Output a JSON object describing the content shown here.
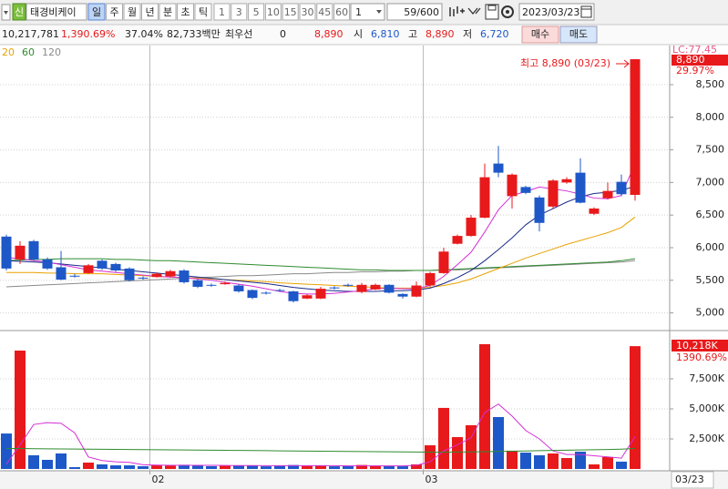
{
  "toolbar": {
    "badge": "신",
    "stock_name": "태경비케이",
    "periods": [
      "일",
      "주",
      "월",
      "년",
      "분",
      "초",
      "틱"
    ],
    "intervals": [
      "1",
      "3",
      "5",
      "10",
      "15",
      "30",
      "45",
      "60"
    ],
    "multiplier": "1",
    "count": "59/600",
    "date": "2023/03/23"
  },
  "info": {
    "volume": "10,217,781",
    "volume_ratio": "1,390.69%",
    "turnover": "37.04%",
    "market_cap": "82,733백만",
    "best_label": "최우선",
    "best_value": "0",
    "current": "8,890",
    "open_label": "시",
    "open": "6,810",
    "high_label": "고",
    "high": "8,890",
    "low_label": "저",
    "low": "6,720",
    "buy": "매수",
    "sell": "매도"
  },
  "chart_data": {
    "type": "candlestick",
    "categories": [
      null,
      null,
      null,
      null,
      null,
      null,
      null,
      null,
      null,
      null,
      null,
      "02",
      null,
      null,
      null,
      null,
      null,
      null,
      null,
      null,
      null,
      null,
      null,
      null,
      null,
      null,
      null,
      null,
      null,
      null,
      null,
      "03",
      null,
      null,
      null,
      null,
      null,
      null,
      null,
      null,
      null,
      null,
      null,
      null,
      null,
      null,
      null
    ],
    "open": [
      6170,
      5820,
      6100,
      5820,
      5700,
      5570,
      5610,
      5800,
      5750,
      5680,
      5540,
      5550,
      5560,
      5650,
      5500,
      5430,
      5440,
      5420,
      5350,
      5310,
      5350,
      5330,
      5220,
      5220,
      5390,
      5430,
      5320,
      5360,
      5430,
      5290,
      5250,
      5420,
      5610,
      6060,
      6180,
      6460,
      7290,
      6790,
      6930,
      6770,
      6630,
      7000,
      7150,
      6520,
      6760,
      7010,
      6810
    ],
    "high": [
      6200,
      6100,
      6120,
      5850,
      5950,
      5600,
      5750,
      5820,
      5770,
      5700,
      5560,
      5620,
      5660,
      5670,
      5520,
      5450,
      5480,
      5440,
      5360,
      5330,
      5370,
      5340,
      5290,
      5400,
      5410,
      5450,
      5460,
      5450,
      5440,
      5300,
      5480,
      5630,
      6000,
      6200,
      6500,
      7290,
      7560,
      7140,
      6950,
      6800,
      7050,
      7080,
      7370,
      6620,
      7000,
      7120,
      8890
    ],
    "low": [
      5650,
      5750,
      5800,
      5660,
      5500,
      5540,
      5600,
      5660,
      5630,
      5480,
      5510,
      5540,
      5550,
      5450,
      5380,
      5400,
      5430,
      5310,
      5210,
      5280,
      5320,
      5160,
      5210,
      5210,
      5360,
      5400,
      5300,
      5350,
      5300,
      5220,
      5240,
      5400,
      5600,
      6050,
      6170,
      6450,
      7080,
      6600,
      6820,
      6250,
      6600,
      6980,
      6680,
      6500,
      6740,
      6790,
      6720
    ],
    "close": [
      5680,
      6030,
      5820,
      5680,
      5510,
      5560,
      5730,
      5680,
      5650,
      5500,
      5530,
      5600,
      5640,
      5470,
      5400,
      5420,
      5460,
      5330,
      5230,
      5300,
      5340,
      5180,
      5270,
      5370,
      5380,
      5420,
      5430,
      5430,
      5310,
      5250,
      5420,
      5610,
      5940,
      6180,
      6460,
      7080,
      7150,
      7120,
      6840,
      6380,
      7030,
      7050,
      6690,
      6600,
      6870,
      6820,
      8890
    ],
    "up_color": "#e8191b",
    "down_color": "#1e58c8",
    "ylim": [
      4743,
      9100
    ],
    "yticks": [
      {
        "value": 5000,
        "label": "5,000"
      },
      {
        "value": 5500,
        "label": "5,500"
      },
      {
        "value": 6000,
        "label": "6,000"
      },
      {
        "value": 6500,
        "label": "6,500"
      },
      {
        "value": 7000,
        "label": "7,000"
      },
      {
        "value": 7500,
        "label": "7,500"
      },
      {
        "value": 8000,
        "label": "8,000"
      },
      {
        "value": 8500,
        "label": "8,500"
      }
    ],
    "grid": true,
    "moving_averages": [
      {
        "color": "#d42fd4",
        "values": [
          5850,
          5830,
          5800,
          5780,
          5740,
          5700,
          5660,
          5640,
          5620,
          5600,
          5580,
          5560,
          5550,
          5540,
          5520,
          5500,
          5470,
          5440,
          5410,
          5370,
          5330,
          5300,
          5290,
          5290,
          5300,
          5320,
          5340,
          5370,
          5380,
          5370,
          5370,
          5420,
          5560,
          5740,
          5930,
          6240,
          6580,
          6800,
          6860,
          6930,
          6900,
          6870,
          6820,
          6760,
          6750,
          6800,
          7290
        ]
      },
      {
        "color": "#1a2a8a",
        "values": [
          5800,
          5790,
          5780,
          5770,
          5750,
          5730,
          5710,
          5690,
          5670,
          5650,
          5630,
          5610,
          5590,
          5570,
          5550,
          5530,
          5510,
          5490,
          5470,
          5450,
          5420,
          5390,
          5370,
          5350,
          5340,
          5330,
          5330,
          5330,
          5340,
          5340,
          5350,
          5380,
          5450,
          5540,
          5650,
          5800,
          5970,
          6150,
          6350,
          6500,
          6600,
          6700,
          6780,
          6830,
          6850,
          6880,
          6940
        ]
      },
      {
        "name": "20",
        "color": "#e8a200",
        "values": [
          5620,
          5620,
          5620,
          5610,
          5610,
          5600,
          5600,
          5600,
          5590,
          5580,
          5570,
          5560,
          5550,
          5540,
          5530,
          5520,
          5510,
          5500,
          5490,
          5480,
          5460,
          5450,
          5440,
          5430,
          5420,
          5410,
          5400,
          5390,
          5380,
          5380,
          5380,
          5390,
          5420,
          5460,
          5520,
          5600,
          5680,
          5760,
          5840,
          5910,
          5980,
          6050,
          6110,
          6170,
          6230,
          6310,
          6470
        ]
      },
      {
        "name": "60",
        "color": "#2e8b2e",
        "values": [
          5800,
          5810,
          5820,
          5820,
          5830,
          5830,
          5830,
          5830,
          5820,
          5820,
          5810,
          5800,
          5800,
          5790,
          5780,
          5770,
          5760,
          5750,
          5740,
          5730,
          5720,
          5710,
          5700,
          5690,
          5680,
          5670,
          5660,
          5660,
          5650,
          5650,
          5650,
          5650,
          5660,
          5670,
          5680,
          5690,
          5700,
          5710,
          5720,
          5730,
          5740,
          5750,
          5760,
          5770,
          5780,
          5800,
          5830
        ]
      },
      {
        "name": "120",
        "color": "#8a8a8a",
        "values": [
          5400,
          5410,
          5420,
          5430,
          5440,
          5450,
          5460,
          5470,
          5480,
          5490,
          5500,
          5510,
          5520,
          5530,
          5540,
          5550,
          5560,
          5570,
          5570,
          5580,
          5590,
          5600,
          5600,
          5610,
          5620,
          5620,
          5630,
          5630,
          5640,
          5640,
          5650,
          5650,
          5660,
          5660,
          5670,
          5680,
          5690,
          5700,
          5710,
          5720,
          5730,
          5740,
          5750,
          5760,
          5770,
          5780,
          5800
        ]
      }
    ],
    "annotation": "최고 8,890 (03/23)",
    "top_label": "LC:77.45",
    "last_price_label": "8,890",
    "last_change_label": "29.97%",
    "last_date_label": "03/23",
    "volume": {
      "values": [
        2950,
        9850,
        1140,
        760,
        1290,
        150,
        530,
        380,
        300,
        300,
        230,
        300,
        300,
        350,
        280,
        230,
        260,
        300,
        280,
        220,
        250,
        330,
        250,
        300,
        220,
        240,
        330,
        280,
        260,
        220,
        380,
        1970,
        5080,
        2650,
        3640,
        10380,
        4320,
        1520,
        1360,
        1140,
        1290,
        910,
        1440,
        380,
        990,
        610,
        10218
      ],
      "ylim": [
        0,
        11364
      ],
      "yticks": [
        {
          "value": 2500,
          "label": "2,500K"
        },
        {
          "value": 5000,
          "label": "5,000K"
        },
        {
          "value": 7500,
          "label": "7,500K"
        }
      ],
      "last_label": "10,218K",
      "ratio_label": "1390.69%",
      "moving_averages": [
        {
          "color": "#d42fd4",
          "values": [
            400,
            2000,
            3700,
            3850,
            3800,
            3000,
            1000,
            700,
            600,
            550,
            350,
            320,
            300,
            300,
            300,
            300,
            290,
            280,
            280,
            270,
            270,
            270,
            270,
            270,
            270,
            260,
            260,
            260,
            260,
            260,
            300,
            600,
            1500,
            2000,
            2600,
            4700,
            5400,
            4400,
            3200,
            2500,
            1500,
            1200,
            1200,
            1100,
            1000,
            900,
            2700
          ]
        },
        {
          "color": "#2e8b2e",
          "values": [
            1700,
            1700,
            1690,
            1680,
            1670,
            1660,
            1650,
            1640,
            1630,
            1620,
            1610,
            1600,
            1590,
            1580,
            1570,
            1560,
            1550,
            1540,
            1530,
            1520,
            1510,
            1500,
            1490,
            1480,
            1470,
            1460,
            1450,
            1440,
            1430,
            1420,
            1410,
            1400,
            1400,
            1410,
            1420,
            1440,
            1460,
            1480,
            1500,
            1520,
            1540,
            1560,
            1580,
            1600,
            1620,
            1650,
            1700
          ]
        }
      ]
    }
  }
}
